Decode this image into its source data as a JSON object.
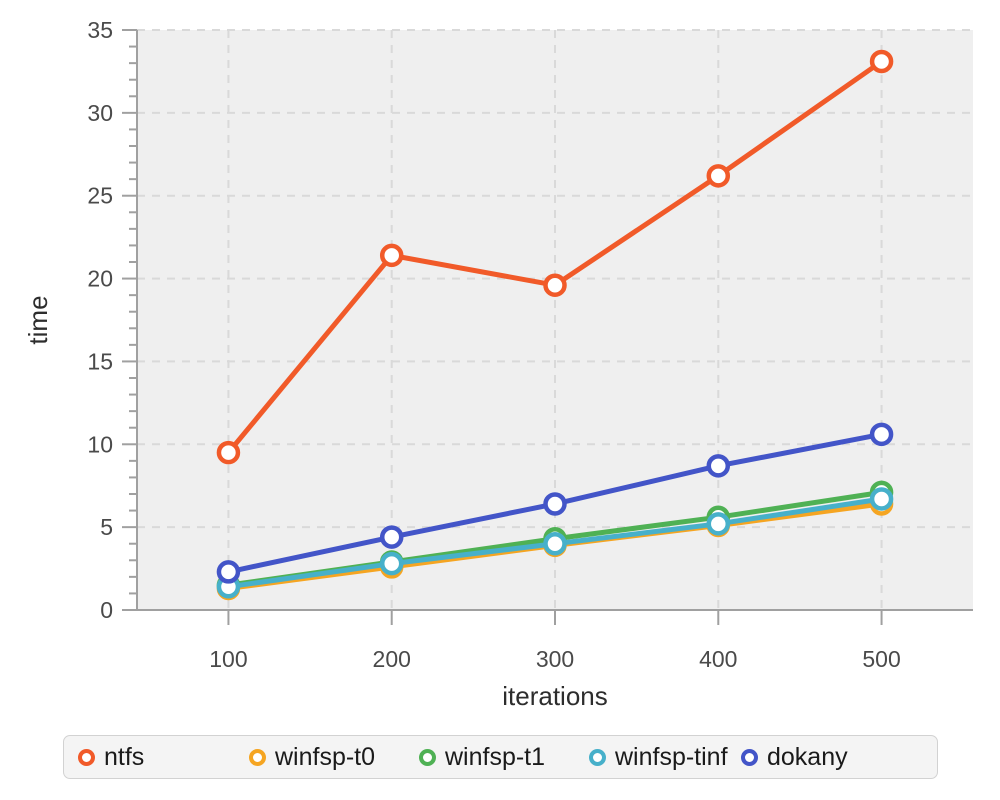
{
  "chart_data": {
    "type": "line",
    "title": "",
    "xlabel": "iterations",
    "ylabel": "time",
    "x": [
      100,
      200,
      300,
      400,
      500
    ],
    "xticks": [
      100,
      200,
      300,
      400,
      500
    ],
    "yticks_major": [
      0,
      5,
      10,
      15,
      20,
      25,
      30,
      35
    ],
    "ytick_minor_step": 1,
    "xlim": [
      44,
      556
    ],
    "ylim": [
      0,
      35
    ],
    "grid": "dashed",
    "legend_position": "bottom",
    "series": [
      {
        "name": "ntfs",
        "color": "#F15A29",
        "values": [
          9.5,
          21.4,
          19.6,
          26.2,
          33.1
        ]
      },
      {
        "name": "winfsp-t0",
        "color": "#F5A522",
        "values": [
          1.3,
          2.6,
          3.9,
          5.1,
          6.4
        ]
      },
      {
        "name": "winfsp-t1",
        "color": "#4FB154",
        "values": [
          1.5,
          2.9,
          4.3,
          5.6,
          7.1
        ]
      },
      {
        "name": "winfsp-tinf",
        "color": "#47B0CA",
        "values": [
          1.4,
          2.8,
          4.0,
          5.2,
          6.7
        ]
      },
      {
        "name": "dokany",
        "color": "#4355C8",
        "values": [
          2.3,
          4.4,
          6.4,
          8.7,
          10.6
        ]
      }
    ]
  },
  "colors": {
    "plot_bg": "#EFEFEF",
    "grid": "#D9D9D9",
    "axis": "#A0A0A0",
    "marker_fill": "#FFFFFF"
  }
}
